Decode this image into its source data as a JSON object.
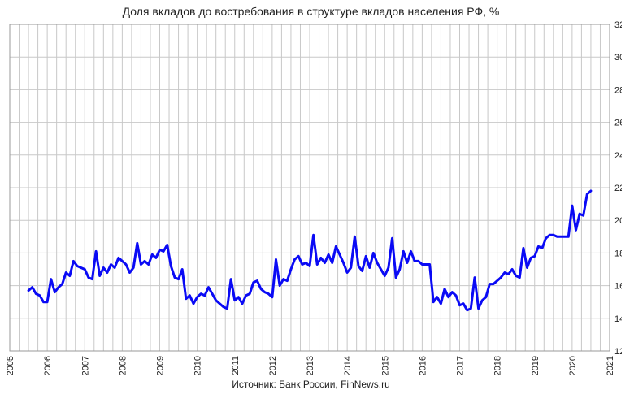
{
  "chart_data": {
    "type": "line",
    "title": "Доля вкладов до востребования в структуре вкладов населения РФ, %",
    "source": "Источник: Банк России, FinNews.ru",
    "xlabel": "",
    "ylabel": "",
    "xlim": [
      2005,
      2021
    ],
    "ylim": [
      12,
      32
    ],
    "x_ticks": [
      2005,
      2006,
      2007,
      2008,
      2009,
      2010,
      2011,
      2012,
      2013,
      2014,
      2015,
      2016,
      2017,
      2018,
      2019,
      2020,
      2021
    ],
    "y_ticks": [
      12,
      14,
      16,
      18,
      20,
      22,
      24,
      26,
      28,
      30,
      32
    ],
    "y_axis_side": "right",
    "grid": true,
    "legend": "none",
    "series": [
      {
        "color": "#0a0af5",
        "x": [
          2005.5,
          2005.6,
          2005.7,
          2005.8,
          2005.9,
          2006.0,
          2006.1,
          2006.2,
          2006.3,
          2006.4,
          2006.5,
          2006.6,
          2006.7,
          2006.8,
          2006.9,
          2007.0,
          2007.1,
          2007.2,
          2007.3,
          2007.4,
          2007.5,
          2007.6,
          2007.7,
          2007.8,
          2007.9,
          2008.0,
          2008.1,
          2008.2,
          2008.3,
          2008.4,
          2008.5,
          2008.6,
          2008.7,
          2008.8,
          2008.9,
          2009.0,
          2009.1,
          2009.2,
          2009.3,
          2009.4,
          2009.5,
          2009.6,
          2009.7,
          2009.8,
          2009.9,
          2010.0,
          2010.1,
          2010.2,
          2010.3,
          2010.4,
          2010.5,
          2010.6,
          2010.7,
          2010.8,
          2010.9,
          2011.0,
          2011.1,
          2011.2,
          2011.3,
          2011.4,
          2011.5,
          2011.6,
          2011.7,
          2011.8,
          2011.9,
          2012.0,
          2012.1,
          2012.2,
          2012.3,
          2012.4,
          2012.5,
          2012.6,
          2012.7,
          2012.8,
          2012.9,
          2013.0,
          2013.1,
          2013.2,
          2013.3,
          2013.4,
          2013.5,
          2013.6,
          2013.7,
          2013.8,
          2013.9,
          2014.0,
          2014.1,
          2014.2,
          2014.3,
          2014.4,
          2014.5,
          2014.6,
          2014.7,
          2014.8,
          2014.9,
          2015.0,
          2015.1,
          2015.2,
          2015.3,
          2015.4,
          2015.5,
          2015.6,
          2015.7,
          2015.8,
          2015.9,
          2016.0,
          2016.1,
          2016.2,
          2016.3,
          2016.4,
          2016.5,
          2016.6,
          2016.7,
          2016.8,
          2016.9,
          2017.0,
          2017.1,
          2017.2,
          2017.3,
          2017.4,
          2017.5,
          2017.6,
          2017.7,
          2017.8,
          2017.9,
          2018.0,
          2018.1,
          2018.2,
          2018.3,
          2018.4,
          2018.5,
          2018.6,
          2018.7,
          2018.8,
          2018.9,
          2019.0,
          2019.1,
          2019.2,
          2019.3,
          2019.4,
          2019.5,
          2019.6,
          2019.7,
          2019.8,
          2019.9,
          2020.0,
          2020.1,
          2020.2,
          2020.3,
          2020.4,
          2020.5
        ],
        "y": [
          15.7,
          15.9,
          15.5,
          15.4,
          15.0,
          15.0,
          16.4,
          15.6,
          15.9,
          16.1,
          16.8,
          16.6,
          17.5,
          17.2,
          17.1,
          17.0,
          16.5,
          16.4,
          18.1,
          16.6,
          17.1,
          16.8,
          17.3,
          17.1,
          17.7,
          17.5,
          17.3,
          16.8,
          17.1,
          18.6,
          17.3,
          17.5,
          17.3,
          17.9,
          17.7,
          18.2,
          18.1,
          18.5,
          17.2,
          16.5,
          16.4,
          17.0,
          15.2,
          15.4,
          14.9,
          15.3,
          15.5,
          15.4,
          15.9,
          15.5,
          15.1,
          14.9,
          14.7,
          14.6,
          16.4,
          15.1,
          15.3,
          14.9,
          15.4,
          15.5,
          16.2,
          16.3,
          15.8,
          15.6,
          15.5,
          15.3,
          17.6,
          16.0,
          16.4,
          16.3,
          17.0,
          17.6,
          17.8,
          17.3,
          17.4,
          17.2,
          19.1,
          17.3,
          17.7,
          17.4,
          17.9,
          17.4,
          18.4,
          17.9,
          17.4,
          16.8,
          17.1,
          19.0,
          17.2,
          16.9,
          17.8,
          17.1,
          18.0,
          17.4,
          17.0,
          16.6,
          17.1,
          18.9,
          16.5,
          17.0,
          18.1,
          17.4,
          18.1,
          17.5,
          17.5,
          17.3,
          17.3,
          17.3,
          15.0,
          15.3,
          14.9,
          15.8,
          15.3,
          15.6,
          15.4,
          14.8,
          14.9,
          14.5,
          14.6,
          16.5,
          14.6,
          15.1,
          15.3,
          16.1,
          16.1,
          16.3,
          16.5,
          16.8,
          16.7,
          17.0,
          16.6,
          16.5,
          18.3,
          17.1,
          17.7,
          17.8,
          18.4,
          18.3,
          18.9,
          19.1,
          19.1,
          19.0,
          19.0,
          19.0,
          19.0,
          20.9,
          19.4,
          20.4,
          20.3,
          21.6,
          21.8
        ],
        "note": "placeholder"
      }
    ]
  }
}
